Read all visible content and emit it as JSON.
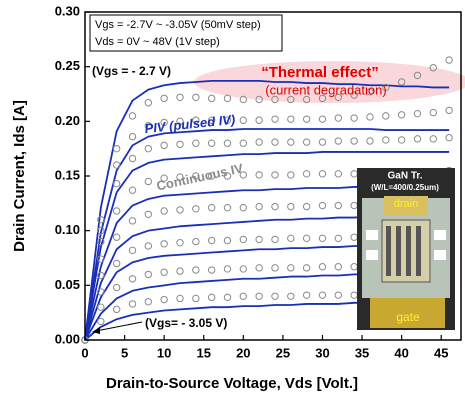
{
  "chart_data": {
    "type": "line",
    "xlabel": "Drain-to-Source Voltage, Vds [Volt.]",
    "ylabel": "Drain Current, Ids [A]",
    "xlim": [
      0,
      47.5
    ],
    "ylim": [
      0,
      0.3
    ],
    "xticks": [
      0,
      5,
      10,
      15,
      20,
      25,
      30,
      35,
      40,
      45
    ],
    "yticks": [
      {
        "value": 0,
        "label": "0.00"
      },
      {
        "value": 0.05,
        "label": "0.05"
      },
      {
        "value": 0.1,
        "label": "0.10"
      },
      {
        "value": 0.15,
        "label": "0.15"
      },
      {
        "value": 0.2,
        "label": "0.20"
      },
      {
        "value": 0.25,
        "label": "0.25"
      },
      {
        "value": 0.3,
        "label": "0.30"
      }
    ],
    "info_box": [
      "Vgs = -2.7V ~ -3.05V (50mV step)",
      "Vds = 0V ~ 48V (1V step)"
    ],
    "annotations": [
      "(Vgs = - 2.7 V)",
      "“Thermal effect”",
      "(current degradation)",
      "PIV (pulsed IV)",
      "Continuous IV",
      "(Vgs= - 3.05 V)"
    ],
    "inset": {
      "title": "GaN Tr.",
      "subtitle": "(W/L=400/0.25um)",
      "top_label": "drain",
      "bottom_label": "gate"
    },
    "x": [
      0,
      2,
      4,
      6,
      8,
      10,
      12,
      14,
      16,
      18,
      20,
      22,
      24,
      26,
      28,
      30,
      32,
      34,
      36,
      38,
      40,
      42,
      44,
      46
    ],
    "series": [
      {
        "marker": "line",
        "color": "#1a2fb8",
        "values": [
          0,
          0.121,
          0.191,
          0.219,
          0.229,
          0.233,
          0.235,
          0.236,
          0.237,
          0.237,
          0.237,
          0.237,
          0.236,
          0.236,
          0.235,
          0.235,
          0.234,
          0.234,
          0.233,
          0.233,
          0.232,
          0.232,
          0.231,
          0.231
        ]
      },
      {
        "marker": "line",
        "color": "#1a2fb8",
        "values": [
          0,
          0.098,
          0.155,
          0.178,
          0.186,
          0.189,
          0.19,
          0.191,
          0.192,
          0.192,
          0.193,
          0.193,
          0.193,
          0.193,
          0.193,
          0.193,
          0.193,
          0.193,
          0.193,
          0.192,
          0.192,
          0.192,
          0.192,
          0.192
        ]
      },
      {
        "marker": "line",
        "color": "#1a2fb8",
        "values": [
          0,
          0.085,
          0.135,
          0.155,
          0.162,
          0.165,
          0.166,
          0.167,
          0.168,
          0.169,
          0.17,
          0.17,
          0.171,
          0.171,
          0.171,
          0.172,
          0.172,
          0.172,
          0.172,
          0.172,
          0.172,
          0.172,
          0.172,
          0.172
        ]
      },
      {
        "marker": "line",
        "color": "#1a2fb8",
        "values": [
          0,
          0.067,
          0.107,
          0.123,
          0.129,
          0.132,
          0.133,
          0.134,
          0.135,
          0.136,
          0.137,
          0.137,
          0.138,
          0.138,
          0.139,
          0.139,
          0.139,
          0.14,
          0.14,
          0.14,
          0.14,
          0.14,
          0.14,
          0.14
        ]
      },
      {
        "marker": "line",
        "color": "#1a2fb8",
        "values": [
          0,
          0.052,
          0.083,
          0.095,
          0.1,
          0.102,
          0.104,
          0.105,
          0.106,
          0.107,
          0.108,
          0.109,
          0.11,
          0.11,
          0.111,
          0.111,
          0.112,
          0.112,
          0.113,
          0.113,
          0.113,
          0.114,
          0.114,
          0.114
        ]
      },
      {
        "marker": "line",
        "color": "#1a2fb8",
        "values": [
          0,
          0.039,
          0.062,
          0.071,
          0.075,
          0.077,
          0.078,
          0.079,
          0.08,
          0.081,
          0.082,
          0.083,
          0.083,
          0.084,
          0.084,
          0.085,
          0.085,
          0.086,
          0.086,
          0.086,
          0.087,
          0.087,
          0.087,
          0.087
        ]
      },
      {
        "marker": "line",
        "color": "#1a2fb8",
        "values": [
          0,
          0.024,
          0.038,
          0.045,
          0.048,
          0.05,
          0.052,
          0.053,
          0.054,
          0.055,
          0.056,
          0.056,
          0.057,
          0.058,
          0.058,
          0.059,
          0.059,
          0.06,
          0.06,
          0.06,
          0.061,
          0.061,
          0.061,
          0.061
        ]
      },
      {
        "marker": "line",
        "color": "#1a2fb8",
        "values": [
          0,
          0.012,
          0.019,
          0.023,
          0.025,
          0.027,
          0.028,
          0.029,
          0.03,
          0.03,
          0.031,
          0.031,
          0.032,
          0.032,
          0.033,
          0.033,
          0.033,
          0.034,
          0.034,
          0.034,
          0.035,
          0.035,
          0.035,
          0.035
        ]
      },
      {
        "marker": "circle",
        "color": "#8a8a8a",
        "values": [
          0,
          0.11,
          0.175,
          0.205,
          0.217,
          0.221,
          0.222,
          0.222,
          0.221,
          0.221,
          0.22,
          0.22,
          0.22,
          0.22,
          0.22,
          0.221,
          0.222,
          0.224,
          0.227,
          0.231,
          0.236,
          0.242,
          0.249,
          0.256
        ]
      },
      {
        "marker": "circle",
        "color": "#8a8a8a",
        "values": [
          0,
          0.1,
          0.16,
          0.186,
          0.196,
          0.199,
          0.2,
          0.201,
          0.201,
          0.201,
          0.201,
          0.201,
          0.202,
          0.202,
          0.202,
          0.202,
          0.203,
          0.203,
          0.204,
          0.205,
          0.206,
          0.207,
          0.208,
          0.21
        ]
      },
      {
        "marker": "circle",
        "color": "#8a8a8a",
        "values": [
          0,
          0.09,
          0.143,
          0.166,
          0.175,
          0.178,
          0.179,
          0.18,
          0.18,
          0.18,
          0.18,
          0.181,
          0.181,
          0.181,
          0.181,
          0.181,
          0.182,
          0.182,
          0.182,
          0.183,
          0.183,
          0.184,
          0.184,
          0.185
        ]
      },
      {
        "marker": "circle",
        "color": "#8a8a8a",
        "values": [
          0,
          0.074,
          0.118,
          0.137,
          0.145,
          0.148,
          0.149,
          0.15,
          0.15,
          0.15,
          0.151,
          0.151,
          0.151,
          0.151,
          0.152,
          0.152,
          0.152,
          0.152,
          0.153,
          0.153,
          0.153,
          0.154,
          0.154,
          0.155
        ]
      },
      {
        "marker": "circle",
        "color": "#8a8a8a",
        "values": [
          0,
          0.059,
          0.094,
          0.109,
          0.115,
          0.118,
          0.119,
          0.12,
          0.121,
          0.121,
          0.121,
          0.122,
          0.122,
          0.122,
          0.122,
          0.123,
          0.123,
          0.123,
          0.123,
          0.124,
          0.124,
          0.124,
          0.125,
          0.125
        ]
      },
      {
        "marker": "circle",
        "color": "#8a8a8a",
        "values": [
          0,
          0.044,
          0.07,
          0.082,
          0.086,
          0.088,
          0.089,
          0.09,
          0.091,
          0.091,
          0.092,
          0.092,
          0.092,
          0.093,
          0.093,
          0.093,
          0.093,
          0.094,
          0.094,
          0.094,
          0.094,
          0.095,
          0.095,
          0.095
        ]
      },
      {
        "marker": "circle",
        "color": "#8a8a8a",
        "values": [
          0,
          0.03,
          0.048,
          0.056,
          0.06,
          0.062,
          0.063,
          0.064,
          0.064,
          0.065,
          0.065,
          0.066,
          0.066,
          0.066,
          0.066,
          0.067,
          0.067,
          0.067,
          0.067,
          0.068,
          0.068,
          0.068,
          0.068,
          0.068
        ]
      },
      {
        "marker": "circle",
        "color": "#8a8a8a",
        "values": [
          0,
          0.017,
          0.028,
          0.033,
          0.035,
          0.037,
          0.038,
          0.038,
          0.039,
          0.039,
          0.04,
          0.04,
          0.04,
          0.04,
          0.041,
          0.041,
          0.041,
          0.041,
          0.041,
          0.042,
          0.042,
          0.042,
          0.042,
          0.042
        ]
      }
    ]
  }
}
